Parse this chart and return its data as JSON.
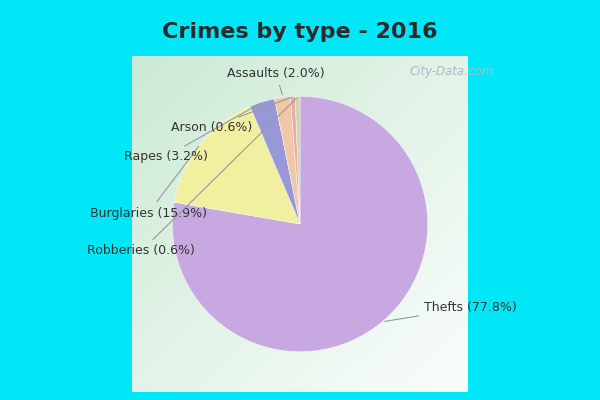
{
  "title": "Crimes by type - 2016",
  "labels": [
    "Thefts",
    "Burglaries",
    "Rapes",
    "Assaults",
    "Arson",
    "Robberies"
  ],
  "display_labels": [
    "Thefts (77.8%)",
    "Burglaries (15.9%)",
    "Rapes (3.2%)",
    "Assaults (2.0%)",
    "Arson (0.6%)",
    "Robberies (0.6%)"
  ],
  "values": [
    77.8,
    15.9,
    3.2,
    2.0,
    0.6,
    0.6
  ],
  "colors": [
    "#c8a8e0",
    "#f0f0a0",
    "#9898d8",
    "#f0c8a8",
    "#f0a8a8",
    "#c8d8b0"
  ],
  "cyan_border": "#00e8f8",
  "title_fontsize": 16,
  "label_fontsize": 9,
  "startangle": 90,
  "label_color": "#333333",
  "line_color": "#999999",
  "watermark": "City-Data.com",
  "watermark_color": "#aabbc8"
}
